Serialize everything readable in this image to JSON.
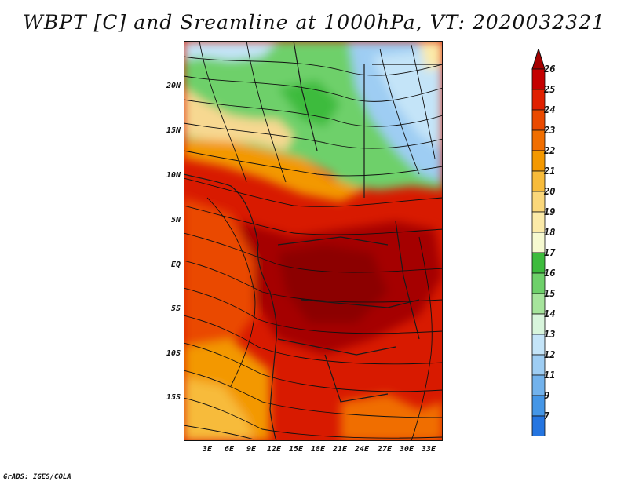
{
  "title": "WBPT [C] and Sreamline at 1000hPa, VT: 2020032321",
  "footer": "GrADS: IGES/COLA",
  "map": {
    "lat_ticks": [
      "20N",
      "15N",
      "10N",
      "5N",
      "EQ",
      "5S",
      "10S",
      "15S"
    ],
    "lon_ticks": [
      "3E",
      "6E",
      "9E",
      "12E",
      "15E",
      "18E",
      "21E",
      "24E",
      "27E",
      "30E",
      "33E"
    ]
  },
  "colorbar": {
    "levels": [
      "26",
      "25",
      "24",
      "23",
      "22",
      "21",
      "20",
      "19",
      "18",
      "17",
      "16",
      "15",
      "14",
      "13",
      "12",
      "11",
      "9",
      "7"
    ],
    "colors": [
      "#a50000",
      "#c40000",
      "#e02000",
      "#ea4a00",
      "#f06e00",
      "#f39800",
      "#f7bb3a",
      "#fad77a",
      "#fbeaa8",
      "#f6f9d0",
      "#3dbb3d",
      "#6ed06a",
      "#a6e49c",
      "#d8f5dc",
      "#c4e4f8",
      "#9ecdf3",
      "#72b2ec",
      "#4596e6",
      "#2575e0",
      "#0d56d4"
    ]
  }
}
